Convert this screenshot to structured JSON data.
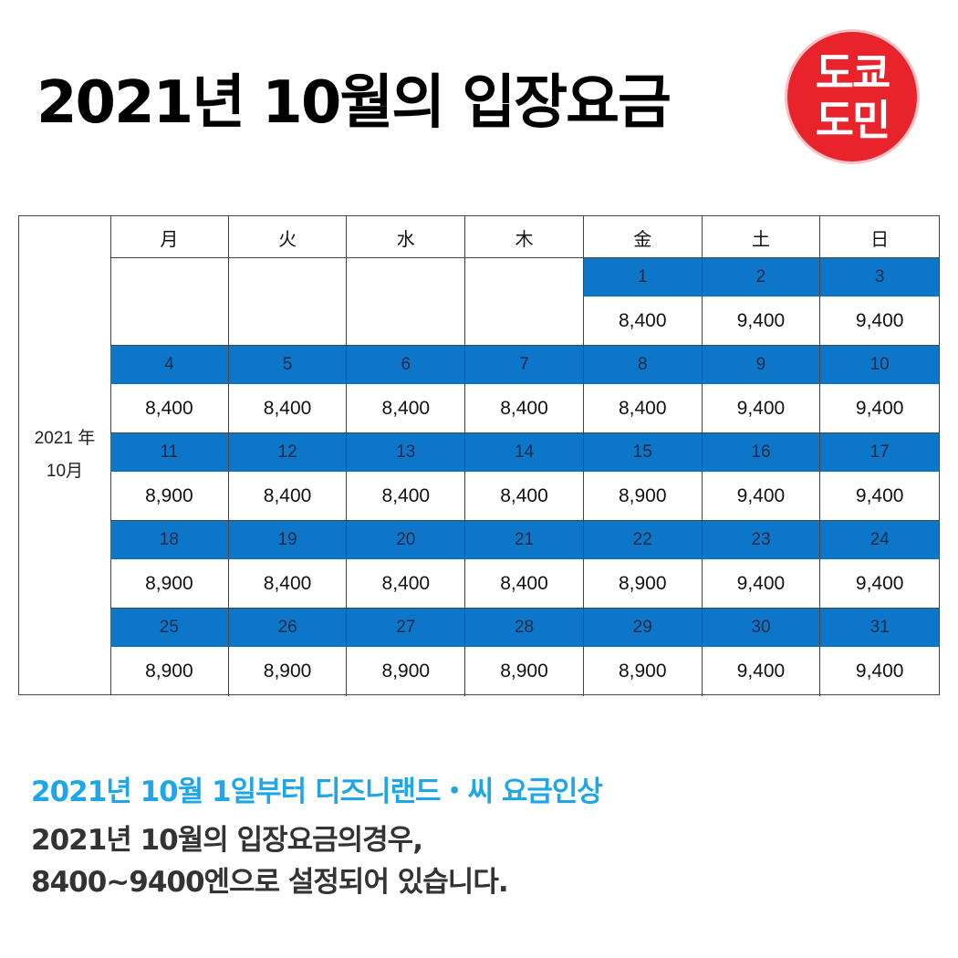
{
  "title": "2021년 10월의 입장요금",
  "logo": {
    "line1": "도쿄",
    "line2": "도민"
  },
  "calendar": {
    "side_label": {
      "year": "2021 年",
      "month": "10月"
    },
    "weekdays": [
      "月",
      "火",
      "水",
      "木",
      "金",
      "土",
      "日"
    ],
    "weeks": [
      {
        "dates": [
          "",
          "",
          "",
          "",
          "1",
          "2",
          "3"
        ],
        "prices": [
          "",
          "",
          "",
          "",
          "8,400",
          "9,400",
          "9,400"
        ]
      },
      {
        "dates": [
          "4",
          "5",
          "6",
          "7",
          "8",
          "9",
          "10"
        ],
        "prices": [
          "8,400",
          "8,400",
          "8,400",
          "8,400",
          "8,400",
          "9,400",
          "9,400"
        ]
      },
      {
        "dates": [
          "11",
          "12",
          "13",
          "14",
          "15",
          "16",
          "17"
        ],
        "prices": [
          "8,900",
          "8,400",
          "8,400",
          "8,400",
          "8,900",
          "9,400",
          "9,400"
        ]
      },
      {
        "dates": [
          "18",
          "19",
          "20",
          "21",
          "22",
          "23",
          "24"
        ],
        "prices": [
          "8,900",
          "8,400",
          "8,400",
          "8,400",
          "8,900",
          "9,400",
          "9,400"
        ]
      },
      {
        "dates": [
          "25",
          "26",
          "27",
          "28",
          "29",
          "30",
          "31"
        ],
        "prices": [
          "8,900",
          "8,900",
          "8,900",
          "8,900",
          "8,900",
          "9,400",
          "9,400"
        ]
      }
    ]
  },
  "headline": "2021년 10월 1일부터 디즈니랜드・씨 요금인상",
  "description": {
    "line1": "2021년 10월의 입장요금의경우,",
    "line2": "8400~9400엔으로 설정되어 있습니다."
  },
  "colors": {
    "date_row": "#0e76c9",
    "headline": "#1ea7e4",
    "logo": "#e8232c"
  }
}
